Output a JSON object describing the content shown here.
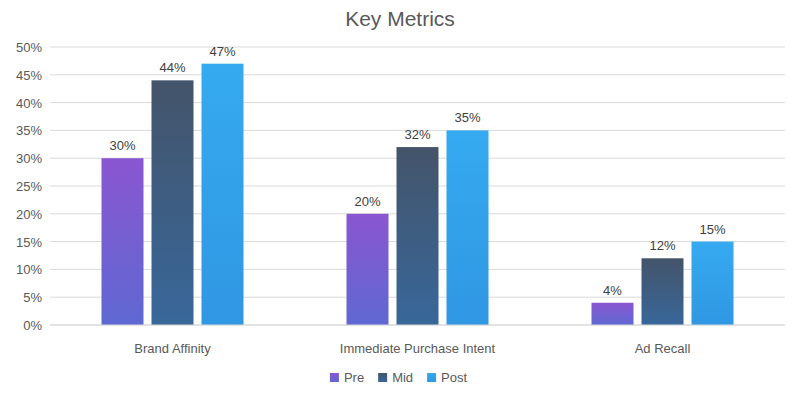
{
  "chart_data": {
    "type": "bar",
    "title": "Key Metrics",
    "categories": [
      "Brand Affinity",
      "Immediate Purchase Intent",
      "Ad Recall"
    ],
    "series": [
      {
        "name": "Pre",
        "color": "#8a56d0",
        "values": [
          30,
          20,
          4
        ],
        "value_labels": [
          "30%",
          "20%",
          "4%"
        ]
      },
      {
        "name": "Mid",
        "color": "#44546a",
        "values": [
          44,
          32,
          12
        ],
        "value_labels": [
          "44%",
          "32%",
          "12%"
        ]
      },
      {
        "name": "Post",
        "color": "#35aaf0",
        "values": [
          47,
          35,
          15
        ],
        "value_labels": [
          "47%",
          "35%",
          "15%"
        ]
      }
    ],
    "ylim": [
      0,
      50
    ],
    "yticks": [
      {
        "value": 0,
        "label": "0%"
      },
      {
        "value": 5,
        "label": "5%"
      },
      {
        "value": 10,
        "label": "10%"
      },
      {
        "value": 15,
        "label": "15%"
      },
      {
        "value": 20,
        "label": "20%"
      },
      {
        "value": 25,
        "label": "25%"
      },
      {
        "value": 30,
        "label": "30%"
      },
      {
        "value": 35,
        "label": "35%"
      },
      {
        "value": 40,
        "label": "40%"
      },
      {
        "value": 45,
        "label": "45%"
      },
      {
        "value": 50,
        "label": "50%"
      }
    ],
    "grid": true,
    "legend": "bottom",
    "data_labels": true
  }
}
